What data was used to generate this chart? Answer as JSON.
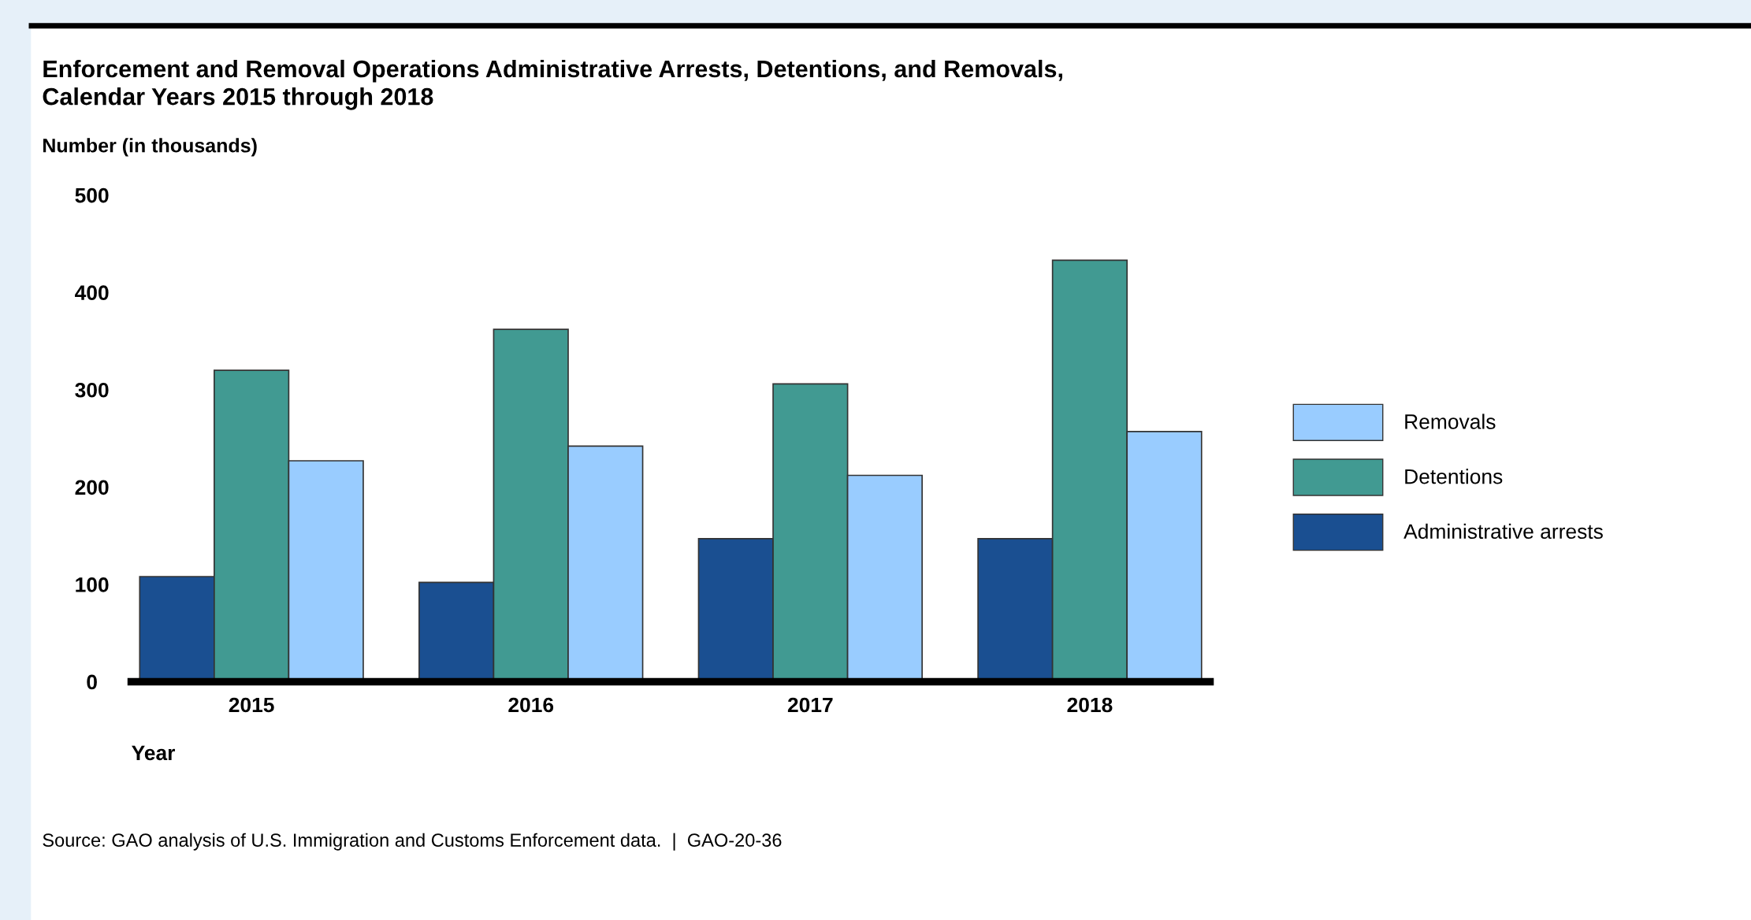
{
  "chart_data": {
    "type": "bar",
    "title": "Enforcement and Removal Operations Administrative Arrests, Detentions, and Removals,\nCalendar Years 2015 through 2018",
    "ylabel": "Number (in thousands)",
    "xlabel": "Year",
    "categories": [
      "2015",
      "2016",
      "2017",
      "2018"
    ],
    "series": [
      {
        "name": "Administrative arrests",
        "color": "#1a4f91",
        "values": [
          108,
          102,
          147,
          147
        ]
      },
      {
        "name": "Detentions",
        "color": "#419a92",
        "values": [
          320,
          362,
          306,
          433
        ]
      },
      {
        "name": "Removals",
        "color": "#99ccff",
        "values": [
          227,
          242,
          212,
          257
        ]
      }
    ],
    "ylim": [
      0,
      500
    ],
    "yticks": [
      0,
      100,
      200,
      300,
      400,
      500
    ],
    "grid": false,
    "legend": "right",
    "annotations": [
      "Source: GAO analysis of U.S. Immigration and Customs Enforcement data.  |  GAO-20-36"
    ]
  }
}
